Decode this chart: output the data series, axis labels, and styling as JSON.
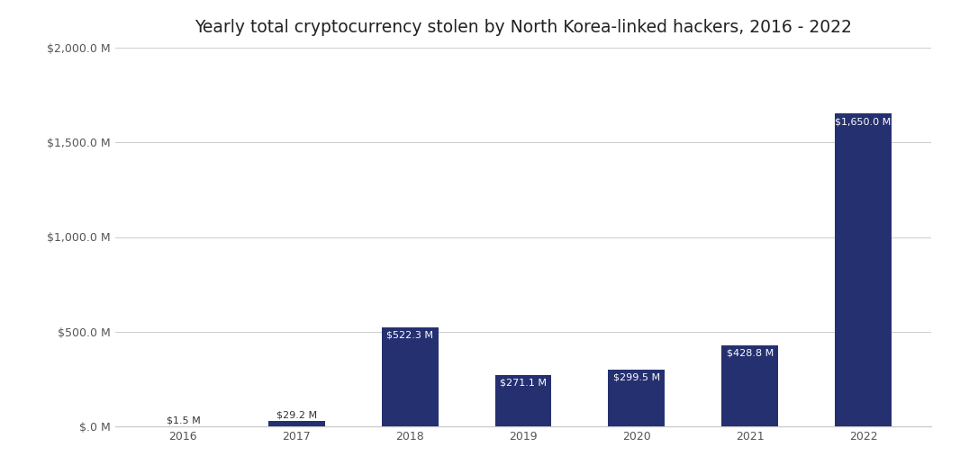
{
  "title": "Yearly total cryptocurrency stolen by North Korea-linked hackers, 2016 - 2022",
  "categories": [
    "2016",
    "2017",
    "2018",
    "2019",
    "2020",
    "2021",
    "2022"
  ],
  "values": [
    1.5,
    29.2,
    522.3,
    271.1,
    299.5,
    428.8,
    1650.0
  ],
  "labels": [
    "$1.5 M",
    "$29.2 M",
    "$522.3 M",
    "$271.1 M",
    "$299.5 M",
    "$428.8 M",
    "$1,650.0 M"
  ],
  "bar_color": "#253070",
  "background_color": "#ffffff",
  "label_color_inside": "#ffffff",
  "label_color_outside": "#333333",
  "ylim": [
    0,
    2000
  ],
  "yticks": [
    0,
    500,
    1000,
    1500,
    2000
  ],
  "ytick_labels": [
    "$.0 M",
    "$500.0 M",
    "$1,000.0 M",
    "$1,500.0 M",
    "$2,000.0 M"
  ],
  "title_fontsize": 13.5,
  "label_fontsize": 8.0,
  "tick_fontsize": 9,
  "grid_color": "#cccccc",
  "bar_width": 0.5
}
